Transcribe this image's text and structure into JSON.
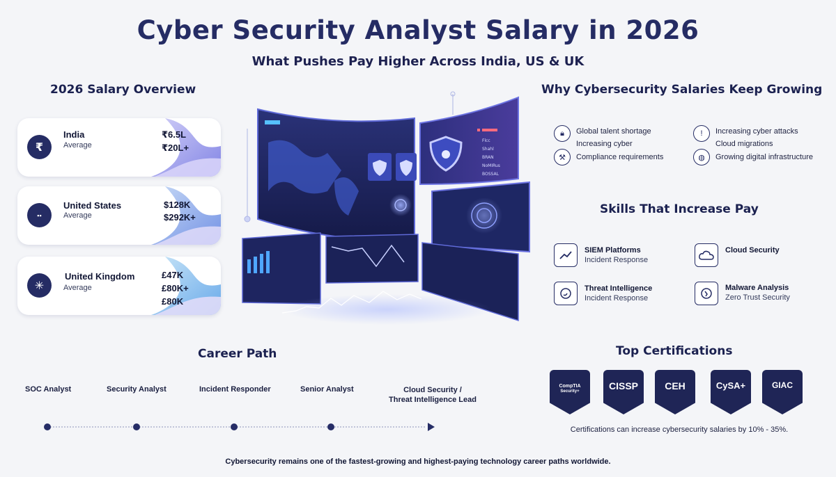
{
  "title": "Cyber Security Analyst Salary in 2026",
  "subtitle": "What Pushes Pay Higher Across India, US & UK",
  "overview": {
    "title": "2026 Salary Overview",
    "cards": [
      {
        "country": "India",
        "label": "Average",
        "icon": "rupee-icon",
        "glyph": "₹",
        "values": [
          "₹6.5L",
          "₹20L+"
        ]
      },
      {
        "country": "United States",
        "label": "Average",
        "icon": "us-flag-icon",
        "glyph": "▪▪",
        "values": [
          "$128K",
          "$292K+"
        ]
      },
      {
        "country": "United Kingdom",
        "label": "Average",
        "icon": "uk-flag-icon",
        "glyph": "✳",
        "values": [
          "£47K",
          "£80K+",
          "£80K"
        ]
      }
    ]
  },
  "why": {
    "title": "Why Cybersecurity Salaries Keep Growing",
    "items": [
      {
        "icon": "shield-lock-icon",
        "lines": [
          "Global talent shortage",
          "Increasing cyber"
        ]
      },
      {
        "icon": "shield-warning-icon",
        "lines": [
          "Increasing cyber attacks",
          "Cloud migrations"
        ]
      },
      {
        "icon": "wrench-icon",
        "lines": [
          "Compliance requirements"
        ]
      },
      {
        "icon": "globe-icon",
        "lines": [
          "Growing digital infrastructure"
        ]
      }
    ]
  },
  "skills": {
    "title": "Skills That Increase Pay",
    "items": [
      {
        "icon": "chart-line-icon",
        "name": "SIEM Platforms",
        "sub": "Incident Response"
      },
      {
        "icon": "cloud-icon",
        "name": "Cloud Security",
        "sub": ""
      },
      {
        "icon": "threat-target-icon",
        "name": "Threat Intelligence",
        "sub": "Incident Response"
      },
      {
        "icon": "malware-icon",
        "name": "Malware Analysis",
        "sub": "Zero Trust Security"
      }
    ]
  },
  "career": {
    "title": "Career Path",
    "steps": [
      "SOC Analyst",
      "Security Analyst",
      "Incident Responder",
      "Senior Analyst"
    ],
    "final_lines": [
      "Cloud Security /",
      "Threat Intelligence Lead"
    ]
  },
  "certifications": {
    "title": "Top Certifications",
    "badges": [
      {
        "name": "CompTIA",
        "sub": "Security+"
      },
      {
        "name": "CISSP",
        "sub": ""
      },
      {
        "name": "CEH",
        "sub": ""
      },
      {
        "name": "CySA+",
        "sub": ""
      },
      {
        "name": "GIAC",
        "sub": ""
      }
    ],
    "note": "Certifications can increase cybersecurity salaries by 10% - 35%."
  },
  "dashboard": {
    "menu_items": [
      "Flcc",
      "Shahl",
      "BRAN",
      "NoMIRus",
      "BOSSAL"
    ],
    "icon": "shield-check-icon"
  },
  "colors": {
    "navy": "#252c64",
    "accent": "#4b57d6",
    "lavender": "#c8c4f2"
  },
  "footer": "Cybersecurity remains one of the fastest-growing and highest-paying technology career paths worldwide."
}
